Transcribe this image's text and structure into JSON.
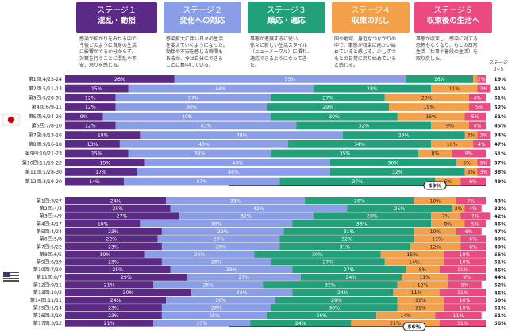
{
  "stages": [
    {
      "title": "ステージ１",
      "name": "混乱・動揺",
      "color": "#5b2a86",
      "desc": "感染が拡がりをみせる中で、\n今後どのように自身の生活\nに影響がでるか分からず、\n対策を行うことに混乱や不\n安、怒りを感じる。"
    },
    {
      "title": "ステージ２",
      "name": "変化への対応",
      "color": "#8a9ee8",
      "desc": "感染拡大に伴い日々の生活\nを変えていくようになった。\n動揺や不安を感じる瞬間も\nあるが、今は自分にできる\nことに集中している。"
    },
    {
      "title": "ステージ３",
      "name": "順応・適応",
      "color": "#22a07a",
      "desc": "事態が進展するに従い、\n徐々に新しい生活スタイル\n（ニューノーマル）に慣れ、\n適応できるようになってき\nた。"
    },
    {
      "title": "ステージ４",
      "name": "収束の兆し",
      "color": "#f2a14a",
      "desc": "国や地域、身近なつながりの\n中で、事態が収束に向かい始\nめていると感じる。少しずつ\nもとの日常に戻り始めている\nと感じる。"
    },
    {
      "title": "ステージ５",
      "name": "収束後の生活へ",
      "color": "#ea4a80",
      "desc": "事態が収束し、感染に対する\n恐怖もなくなり、もとの日常\n生活（仕事や普段の生活）を\n取り戻した。"
    }
  ],
  "corner_label": "ステージ\n3~5",
  "icons": {
    "japan": "japan-flag-icon",
    "usa": "usa-flag-icon"
  },
  "chart_data": [
    {
      "type": "bar",
      "stacked": true,
      "orientation": "horizontal",
      "country": "Japan",
      "colors": [
        "#5b2a86",
        "#8a9ee8",
        "#22a07a",
        "#f2a14a",
        "#ea4a80"
      ],
      "categories": [
        "第1回:4/23-24",
        "第2回:5/11-13",
        "第3回:5/28-31",
        "第4回:6/9-11",
        "第5回:6/24-26",
        "第6回:7/8-10",
        "第7回:8/13-16",
        "第8回:9/16-18",
        "第9回:10/21-23",
        "第10回:11/19-22",
        "第11回:1/28-30",
        "第12回:3/19-20"
      ],
      "series": [
        {
          "name": "ステージ１",
          "values": [
            26,
            15,
            12,
            12,
            9,
            12,
            18,
            13,
            15,
            19,
            17,
            14
          ]
        },
        {
          "name": "ステージ２",
          "values": [
            55,
            44,
            37,
            36,
            40,
            43,
            48,
            40,
            34,
            44,
            46,
            37
          ]
        },
        {
          "name": "ステージ３",
          "values": [
            16,
            28,
            27,
            29,
            30,
            32,
            29,
            34,
            35,
            30,
            32,
            37
          ]
        },
        {
          "name": "ステージ４",
          "values": [
            1,
            11,
            20,
            19,
            16,
            9,
            3,
            10,
            8,
            5,
            3,
            6
          ]
        },
        {
          "name": "ステージ５",
          "values": [
            2,
            3,
            4,
            5,
            5,
            4,
            3,
            4,
            8,
            3,
            3,
            6
          ]
        }
      ],
      "stage35_totals": [
        "19%",
        "41%",
        "51%",
        "52%",
        "51%",
        "45%",
        "34%",
        "47%",
        "51%",
        "37%",
        "38%",
        "49%"
      ],
      "annotation": "49%"
    },
    {
      "type": "bar",
      "stacked": true,
      "orientation": "horizontal",
      "country": "USA",
      "colors": [
        "#5b2a86",
        "#8a9ee8",
        "#22a07a",
        "#f2a14a",
        "#ea4a80"
      ],
      "categories": [
        "第1回:3/27",
        "第2回:4/3",
        "第3回:4/9",
        "第4回:4/17",
        "第5回:4/24",
        "第6回:5/8",
        "第7回:5/22",
        "第8回:6/5",
        "第9回:6/19",
        "第10回:7/10",
        "第11回:8/7",
        "第12回:9/11",
        "第13回:10/2",
        "第14回:11/11",
        "第15回:1/14",
        "第16回:2/10",
        "第17回:3/12"
      ],
      "series": [
        {
          "name": "ステージ１",
          "values": [
            24,
            25,
            27,
            18,
            23,
            22,
            23,
            19,
            23,
            25,
            29,
            21,
            30,
            24,
            23,
            23,
            21
          ]
        },
        {
          "name": "ステージ２",
          "values": [
            33,
            42,
            32,
            36,
            29,
            29,
            28,
            26,
            26,
            29,
            27,
            26,
            24,
            26,
            26,
            25,
            23
          ]
        },
        {
          "name": "ステージ３",
          "values": [
            26,
            25,
            28,
            33,
            31,
            32,
            31,
            30,
            27,
            27,
            24,
            32,
            24,
            29,
            30,
            26,
            24
          ]
        },
        {
          "name": "ステージ４",
          "values": [
            10,
            3,
            7,
            8,
            10,
            11,
            12,
            15,
            14,
            8,
            11,
            12,
            11,
            11,
            11,
            14,
            21
          ]
        },
        {
          "name": "ステージ５",
          "values": [
            7,
            4,
            7,
            5,
            6,
            6,
            6,
            10,
            10,
            11,
            9,
            8,
            11,
            10,
            10,
            11,
            11
          ]
        }
      ],
      "stage35_totals": [
        "43%",
        "32%",
        "42%",
        "46%",
        "47%",
        "49%",
        "49%",
        "55%",
        "51%",
        "46%",
        "44%",
        "52%",
        "46%",
        "50%",
        "51%",
        "51%",
        "56%"
      ],
      "annotation": "56%"
    }
  ]
}
